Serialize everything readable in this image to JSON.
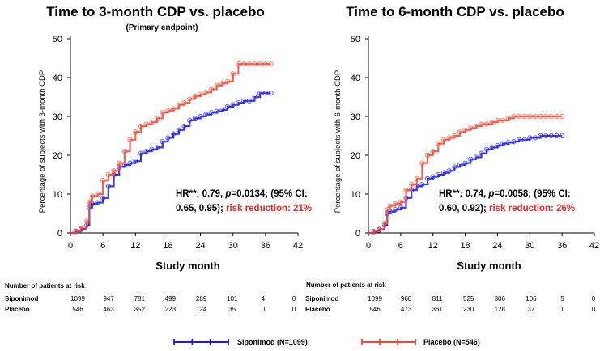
{
  "colors": {
    "siponimod": "#1a1adb",
    "placebo": "#ee4a36",
    "red_text": "#e8262a"
  },
  "legend": [
    {
      "label": "Siponimod (N=1099)",
      "color": "#1a1adb"
    },
    {
      "label": "Placebo (N=546)",
      "color": "#ee4a36"
    }
  ],
  "risk_title": "Number of patients at risk",
  "chart_data": [
    {
      "type": "line",
      "title": "Time to 3-month CDP vs. placebo",
      "subtitle": "(Primary endpoint)",
      "xlabel": "Study month",
      "ylabel": "Percentage of subjects with 3-month CDP",
      "xlim": [
        0,
        42
      ],
      "ylim": [
        0,
        50
      ],
      "xticks": [
        0,
        6,
        12,
        18,
        24,
        30,
        36,
        42
      ],
      "yticks": [
        0,
        10,
        20,
        30,
        40,
        50
      ],
      "annotation": {
        "line1": "HR**: 0.79, ",
        "p": "p",
        "line1b": "=0.0134; (95% CI:",
        "line2": "0.65, 0.95); ",
        "red": "risk reduction: 21%"
      },
      "series": [
        {
          "name": "Siponimod",
          "color": "#1a1adb",
          "x": [
            0,
            1,
            2,
            3,
            3.5,
            4,
            5,
            6,
            7,
            8,
            9,
            10,
            11,
            12,
            13,
            14,
            15,
            16,
            17,
            18,
            19,
            20,
            21,
            22,
            23,
            24,
            25,
            26,
            27,
            28,
            29,
            30,
            31,
            32,
            33,
            34,
            35,
            36,
            37
          ],
          "y": [
            0,
            0.4,
            1,
            2,
            6.5,
            7.5,
            7.8,
            9,
            12,
            15,
            17,
            17.5,
            18,
            18.5,
            20.5,
            21,
            21.5,
            22,
            23.5,
            24.5,
            25.5,
            26.5,
            27.5,
            29,
            29.5,
            30,
            30.5,
            31,
            31.3,
            31.7,
            32.5,
            33,
            33.5,
            34,
            34,
            35,
            36,
            36,
            36
          ]
        },
        {
          "name": "Placebo",
          "color": "#ee4a36",
          "x": [
            0,
            1,
            2,
            3,
            3.5,
            4,
            5,
            6,
            7,
            8,
            9,
            10,
            11,
            12,
            13,
            14,
            15,
            16,
            17,
            18,
            19,
            20,
            21,
            22,
            23,
            24,
            25,
            26,
            27,
            28,
            29,
            30,
            31,
            32,
            33,
            34,
            35,
            36,
            37
          ],
          "y": [
            0,
            0.5,
            1.2,
            3,
            8,
            9.5,
            10,
            13.5,
            15,
            16,
            18,
            21,
            24,
            26,
            27.5,
            28,
            28.5,
            29.5,
            31,
            31.5,
            32,
            33,
            33.5,
            34.5,
            35.2,
            35.7,
            36.2,
            37,
            38,
            38.5,
            39,
            41,
            43.5,
            43.5,
            43.5,
            43.5,
            43.5,
            43.5,
            43.5
          ]
        }
      ],
      "risk_table": {
        "months": [
          0,
          6,
          12,
          18,
          24,
          30,
          36,
          42
        ],
        "rows": [
          {
            "label": "Siponimod",
            "values": [
              "1099",
              "947",
              "781",
              "499",
              "289",
              "101",
              "4",
              "0"
            ]
          },
          {
            "label": "Placebo",
            "values": [
              "546",
              "463",
              "352",
              "223",
              "124",
              "35",
              "0",
              "0"
            ]
          }
        ]
      }
    },
    {
      "type": "line",
      "title": "Time to 6-month CDP vs. placebo",
      "subtitle": "",
      "xlabel": "Study month",
      "ylabel": "Percentage of subjects with 6-month CDP",
      "xlim": [
        0,
        42
      ],
      "ylim": [
        0,
        50
      ],
      "xticks": [
        0,
        6,
        12,
        18,
        24,
        30,
        36,
        42
      ],
      "yticks": [
        0,
        10,
        20,
        30,
        40,
        50
      ],
      "annotation": {
        "line1": "HR**: 0.74, ",
        "p": "p",
        "line1b": "=0.0058; (95% CI:",
        "line2": "0.60, 0.92); ",
        "red": "risk reduction: 26%"
      },
      "series": [
        {
          "name": "Siponimod",
          "color": "#1a1adb",
          "x": [
            0,
            1,
            2,
            3,
            3.5,
            4,
            5,
            6,
            7,
            8,
            9,
            10,
            11,
            12,
            13,
            14,
            15,
            16,
            17,
            18,
            19,
            20,
            21,
            22,
            23,
            24,
            25,
            26,
            27,
            28,
            29,
            30,
            31,
            32,
            33,
            34,
            35,
            36
          ],
          "y": [
            0,
            0.3,
            0.8,
            2,
            5,
            5.5,
            6,
            6.5,
            9,
            11,
            12,
            12.5,
            14,
            14.5,
            15,
            15.5,
            16,
            17,
            17.5,
            18,
            19,
            19.5,
            20.5,
            21.5,
            22,
            22.5,
            23,
            23.3,
            23.5,
            24,
            24,
            24.5,
            24.5,
            25,
            25,
            25,
            25,
            25
          ]
        },
        {
          "name": "Placebo",
          "color": "#ee4a36",
          "x": [
            0,
            1,
            2,
            3,
            3.5,
            4,
            5,
            6,
            7,
            8,
            9,
            10,
            11,
            12,
            13,
            14,
            15,
            16,
            17,
            18,
            19,
            20,
            21,
            22,
            23,
            24,
            25,
            26,
            27,
            28,
            29,
            30,
            31,
            32,
            33,
            34,
            35,
            36
          ],
          "y": [
            0,
            0.4,
            1,
            2.5,
            6,
            7,
            7.5,
            8,
            11,
            12.5,
            14,
            18,
            20,
            21,
            23,
            24,
            24.5,
            25,
            26,
            26.5,
            27,
            27.5,
            28,
            28,
            28.5,
            29,
            29,
            29.5,
            30,
            30,
            30,
            30,
            30,
            30,
            30,
            30,
            30,
            30
          ]
        }
      ],
      "risk_table": {
        "months": [
          0,
          6,
          12,
          18,
          24,
          30,
          36,
          42
        ],
        "rows": [
          {
            "label": "Siponimod",
            "values": [
              "1099",
              "960",
              "811",
              "525",
              "306",
              "106",
              "5",
              "0"
            ]
          },
          {
            "label": "Placebo",
            "values": [
              "546",
              "473",
              "361",
              "230",
              "128",
              "37",
              "1",
              "0"
            ]
          }
        ]
      }
    }
  ]
}
